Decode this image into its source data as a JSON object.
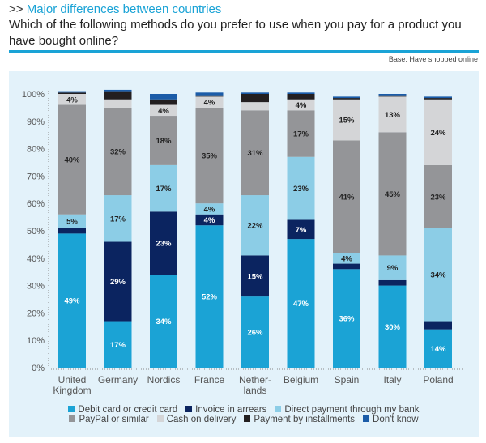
{
  "header": {
    "kicker_arrows": ">>",
    "kicker": "Major differences between countries",
    "question": "Which of the following methods do you prefer to use when you pay for a product you have bought online?",
    "base_note": "Base: Have shopped online"
  },
  "chart_data": {
    "type": "bar",
    "stacked": true,
    "title": "Which of the following methods do you prefer to use when you pay for a product you have bought online?",
    "xlabel": "",
    "ylabel": "",
    "ylim": [
      0,
      100
    ],
    "yticks": [
      "0%",
      "10%",
      "20%",
      "30%",
      "40%",
      "50%",
      "60%",
      "70%",
      "80%",
      "90%",
      "100%"
    ],
    "grid": false,
    "legend_position": "bottom",
    "categories": [
      [
        "United",
        "Kingdom"
      ],
      [
        "Germany"
      ],
      [
        "Nordics"
      ],
      [
        "France"
      ],
      [
        "Nether-",
        "lands"
      ],
      [
        "Belgium"
      ],
      [
        "Spain"
      ],
      [
        "Italy"
      ],
      [
        "Poland"
      ]
    ],
    "series": [
      {
        "name": "Debit card or credit card",
        "color": "#1ba3d5",
        "label_color": "#ffffff",
        "values": [
          49,
          17,
          34,
          52,
          26,
          47,
          36,
          30,
          14
        ],
        "labels": [
          "49%",
          "17%",
          "34%",
          "52%",
          "26%",
          "47%",
          "36%",
          "30%",
          "14%"
        ]
      },
      {
        "name": "Invoice in arrears",
        "color": "#0b2460",
        "label_color": "#ffffff",
        "values": [
          2,
          29,
          23,
          4,
          15,
          7,
          2,
          2,
          3
        ],
        "labels": [
          "",
          "29%",
          "23%",
          "4%",
          "15%",
          "7%",
          "",
          "",
          ""
        ]
      },
      {
        "name": "Direct payment through my bank",
        "color": "#8ccde6",
        "label_color": "#222222",
        "values": [
          5,
          17,
          17,
          4,
          22,
          23,
          4,
          9,
          34
        ],
        "labels": [
          "5%",
          "17%",
          "17%",
          "4%",
          "22%",
          "23%",
          "4%",
          "9%",
          "34%"
        ]
      },
      {
        "name": "PayPal or similar",
        "color": "#949598",
        "label_color": "#222222",
        "values": [
          40,
          32,
          18,
          35,
          31,
          17,
          41,
          45,
          23
        ],
        "labels": [
          "40%",
          "32%",
          "18%",
          "35%",
          "31%",
          "17%",
          "41%",
          "45%",
          "23%"
        ]
      },
      {
        "name": "Cash on delivery",
        "color": "#d4d5d7",
        "label_color": "#222222",
        "values": [
          4,
          3,
          4,
          4,
          3,
          4,
          15,
          13,
          24
        ],
        "labels": [
          "4%",
          "",
          "4%",
          "4%",
          "",
          "4%",
          "15%",
          "13%",
          "24%"
        ]
      },
      {
        "name": "Payment by installments",
        "color": "#231f20",
        "label_color": "#ffffff",
        "values": [
          0.5,
          3,
          2,
          0.5,
          3,
          2,
          0.5,
          0.5,
          0.5
        ],
        "labels": [
          "",
          "",
          "",
          "",
          "",
          "",
          "",
          "",
          ""
        ]
      },
      {
        "name": "Don't know",
        "color": "#1b5ca8",
        "label_color": "#ffffff",
        "values": [
          0.5,
          0.5,
          2,
          1,
          0.5,
          0.5,
          0.5,
          0.5,
          0.5
        ],
        "labels": [
          "",
          "",
          "",
          "",
          "",
          "",
          "",
          "",
          ""
        ]
      }
    ]
  }
}
